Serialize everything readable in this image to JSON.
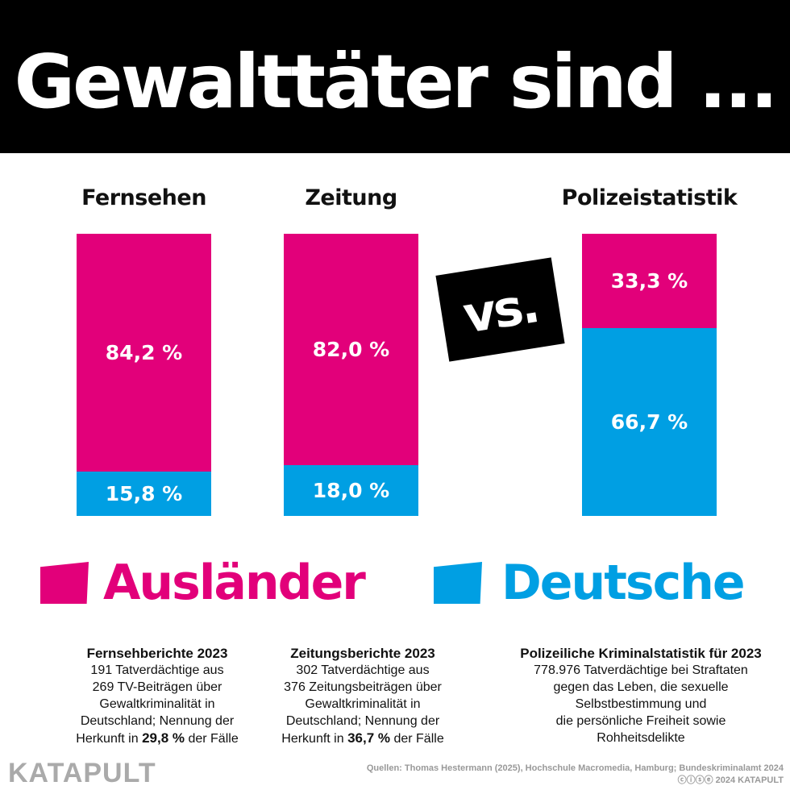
{
  "title": "Gewalttäter sind ...",
  "vs": "vs.",
  "colors": {
    "auslaender": "#e2007a",
    "deutsche": "#009fe3"
  },
  "chart_data": {
    "type": "bar",
    "stacked": true,
    "categories": [
      "Fernsehen",
      "Zeitung",
      "Polizeistatistik"
    ],
    "series": [
      {
        "name": "Ausländer",
        "values": [
          84.2,
          82.0,
          33.3
        ],
        "labels": [
          "84,2 %",
          "82,0 %",
          "33,3 %"
        ]
      },
      {
        "name": "Deutsche",
        "values": [
          15.8,
          18.0,
          66.7
        ],
        "labels": [
          "15,8 %",
          "18,0 %",
          "66,7 %"
        ]
      }
    ],
    "ylim": [
      0,
      100
    ],
    "legend": "bottom"
  },
  "notes": [
    {
      "title": "Fernsehberichte 2023",
      "lines": [
        "191 Tatverdächtige aus",
        "269 TV-Beiträgen über",
        "Gewaltkriminalität in",
        "Deutschland; Nennung der"
      ],
      "last_pre": "Herkunft in ",
      "last_bold": "29,8 %",
      "last_post": " der Fälle"
    },
    {
      "title": "Zeitungsberichte 2023",
      "lines": [
        "302 Tatverdächtige aus",
        "376 Zeitungsbeiträgen über",
        "Gewaltkriminalität in",
        "Deutschland; Nennung der"
      ],
      "last_pre": "Herkunft in ",
      "last_bold": "36,7 %",
      "last_post": " der Fälle"
    },
    {
      "title": "Polizeiliche Kriminalstatistik für 2023",
      "lines": [
        "778.976 Tatverdächtige bei Straftaten",
        "gegen das Leben, die sexuelle",
        "Selbstbestimmung und",
        "die persönliche Freiheit sowie",
        "Rohheitsdelikte"
      ]
    }
  ],
  "footer": {
    "logo": "KATAPULT",
    "source": "Quellen: Thomas Hestermann (2025), Hochschule Macromedia, Hamburg; Bundeskriminalamt 2024",
    "copyright": "ⓒⓘⓢⓔ 2024 KATAPULT"
  }
}
